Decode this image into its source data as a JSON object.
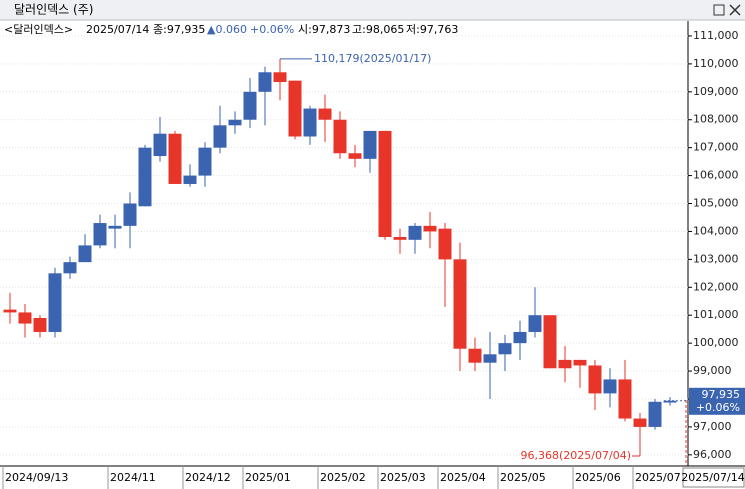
{
  "header": {
    "title": "달러인덱스 (주)"
  },
  "info": {
    "name": "<달러인덱스>",
    "date": "2025/07/14",
    "close": "종:97,935",
    "change": "▲0.060",
    "change_pct": "+0.06%",
    "open": "시:97,873",
    "high": "고:98,065",
    "low": "저:97,763"
  },
  "chart_data": {
    "type": "candlestick",
    "categories": [
      "2024/09/13",
      null,
      null,
      null,
      null,
      null,
      null,
      "2024/11",
      null,
      null,
      null,
      null,
      "2024/12",
      null,
      null,
      null,
      "2025/01",
      null,
      null,
      null,
      null,
      "2025/02",
      null,
      null,
      null,
      "2025/03",
      null,
      null,
      null,
      "2025/04",
      null,
      null,
      null,
      "2025/05",
      null,
      null,
      null,
      null,
      "2025/06",
      null,
      null,
      null,
      "2025/07",
      null,
      "2025/07/14"
    ],
    "open": [
      101.2,
      101.1,
      100.9,
      100.4,
      102.5,
      102.9,
      103.5,
      104.1,
      104.2,
      104.9,
      106.7,
      107.5,
      105.7,
      106.0,
      107.0,
      107.8,
      108.0,
      109.0,
      109.7,
      109.4,
      107.4,
      108.4,
      108.0,
      106.8,
      106.6,
      107.6,
      103.8,
      103.7,
      104.2,
      104.1,
      103.0,
      99.8,
      99.3,
      99.6,
      100.0,
      100.4,
      101.0,
      99.4,
      99.4,
      99.2,
      98.2,
      98.7,
      97.3,
      97.0,
      97.873
    ],
    "high": [
      101.8,
      101.4,
      101.0,
      102.7,
      103.1,
      103.9,
      104.6,
      104.6,
      105.4,
      107.1,
      108.1,
      107.6,
      106.4,
      107.2,
      108.5,
      108.3,
      109.5,
      109.9,
      110.179,
      109.4,
      108.5,
      108.9,
      108.3,
      107.1,
      107.6,
      107.6,
      104.1,
      104.3,
      104.7,
      104.3,
      103.6,
      100.2,
      100.4,
      100.3,
      100.8,
      102.0,
      101.0,
      99.9,
      99.4,
      99.4,
      99.1,
      99.4,
      97.5,
      98.0,
      98.065
    ],
    "low": [
      100.7,
      100.2,
      100.2,
      100.2,
      102.3,
      102.9,
      103.4,
      103.4,
      103.4,
      104.9,
      106.5,
      105.7,
      105.6,
      105.6,
      106.8,
      107.5,
      107.7,
      107.8,
      108.7,
      107.3,
      107.1,
      107.2,
      106.6,
      106.3,
      106.1,
      103.7,
      103.2,
      103.2,
      103.4,
      101.3,
      99.0,
      99.0,
      98.0,
      99.0,
      99.4,
      100.2,
      99.1,
      98.6,
      98.4,
      97.6,
      97.7,
      97.2,
      96.368,
      96.9,
      97.763
    ],
    "close": [
      101.1,
      100.7,
      100.4,
      102.5,
      102.9,
      103.5,
      104.3,
      104.2,
      105.0,
      107.0,
      107.5,
      105.7,
      106.0,
      107.0,
      107.8,
      108.0,
      109.0,
      109.7,
      109.35,
      107.4,
      108.4,
      108.0,
      106.8,
      106.6,
      107.6,
      103.8,
      103.7,
      104.2,
      104.0,
      103.0,
      99.8,
      99.3,
      99.6,
      100.0,
      100.4,
      101.0,
      99.1,
      99.1,
      99.2,
      98.2,
      98.7,
      97.3,
      97.0,
      97.9,
      97.935
    ],
    "up_color": "#3a63b0",
    "down_color": "#e8352a",
    "ylim": [
      95.6,
      111.5
    ],
    "yticks": [
      {
        "value": 96,
        "label": "96,000"
      },
      {
        "value": 97,
        "label": "97,000"
      },
      {
        "value": 98,
        "label": "98,000"
      },
      {
        "value": 99,
        "label": "99,000"
      },
      {
        "value": 100,
        "label": "100,000"
      },
      {
        "value": 101,
        "label": "101,000"
      },
      {
        "value": 102,
        "label": "102,000"
      },
      {
        "value": 103,
        "label": "103,000"
      },
      {
        "value": 104,
        "label": "104,000"
      },
      {
        "value": 105,
        "label": "105,000"
      },
      {
        "value": 106,
        "label": "106,000"
      },
      {
        "value": 107,
        "label": "107,000"
      },
      {
        "value": 108,
        "label": "108,000"
      },
      {
        "value": 109,
        "label": "109,000"
      },
      {
        "value": 110,
        "label": "110,000"
      },
      {
        "value": 111,
        "label": "111,000"
      }
    ],
    "grid": true,
    "annotations": {
      "high": "110,179(2025/01/17)",
      "low": "96,368(2025/07/04)"
    },
    "last_label": {
      "price": "97,935",
      "change": "+0.06%"
    }
  }
}
